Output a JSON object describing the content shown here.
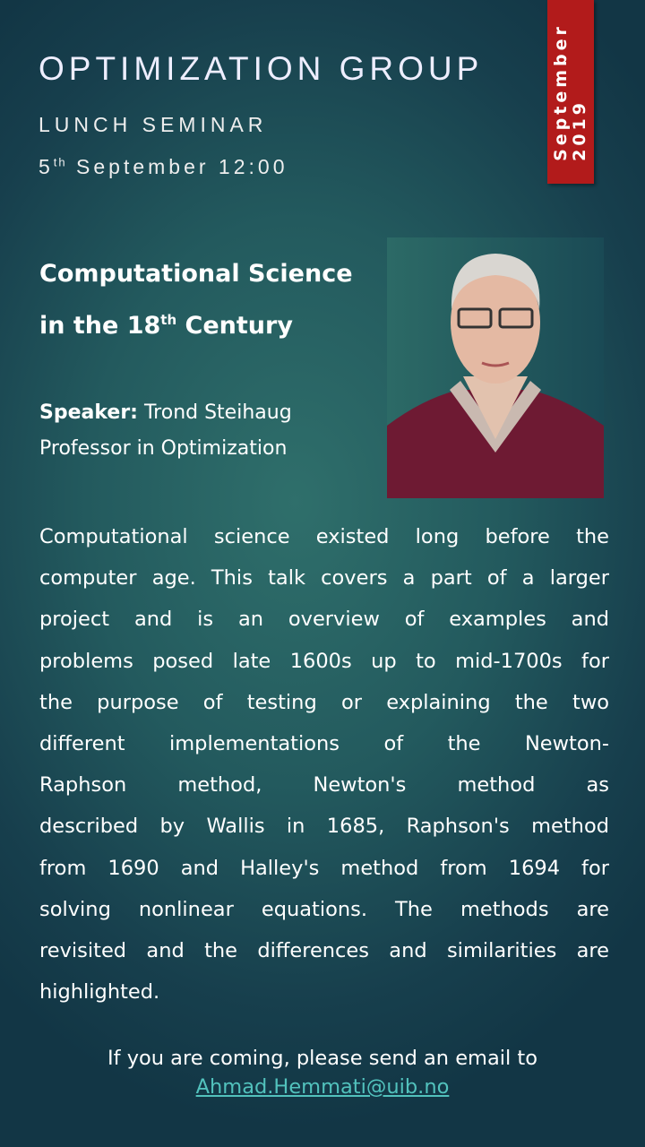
{
  "header": {
    "org": "OPTIMIZATION GROUP",
    "event": "LUNCH SEMINAR",
    "date_day": "5",
    "date_suffix": "th",
    "date_rest": " September 12:00"
  },
  "banner": {
    "month": "September",
    "year": "2019",
    "color": "#b21b1b"
  },
  "talk": {
    "title_line1": "Computational Science",
    "title_line2_pre": "in the 18",
    "title_line2_sup": "th",
    "title_line2_post": " Century"
  },
  "speaker": {
    "label": "Speaker:",
    "name": " Trond Steihaug",
    "position": "Professor in Optimization"
  },
  "abstract_lines": [
    "Computational science existed long before the",
    "computer age. This talk covers a part of a larger",
    "project and is an overview of examples and",
    "problems posed late 1600s up to mid-1700s for",
    "the purpose of testing or explaining the two",
    "different implementations of the Newton-",
    "Raphson method, Newton's method as",
    "described by Wallis in 1685, Raphson's method",
    "from 1690 and Halley's method from 1694 for",
    "solving nonlinear equations. The methods are",
    "revisited and the differences and similarities are",
    "highlighted."
  ],
  "footer": {
    "text": "If you are coming, please send an email to",
    "email": "Ahmad.Hemmati@uib.no"
  }
}
